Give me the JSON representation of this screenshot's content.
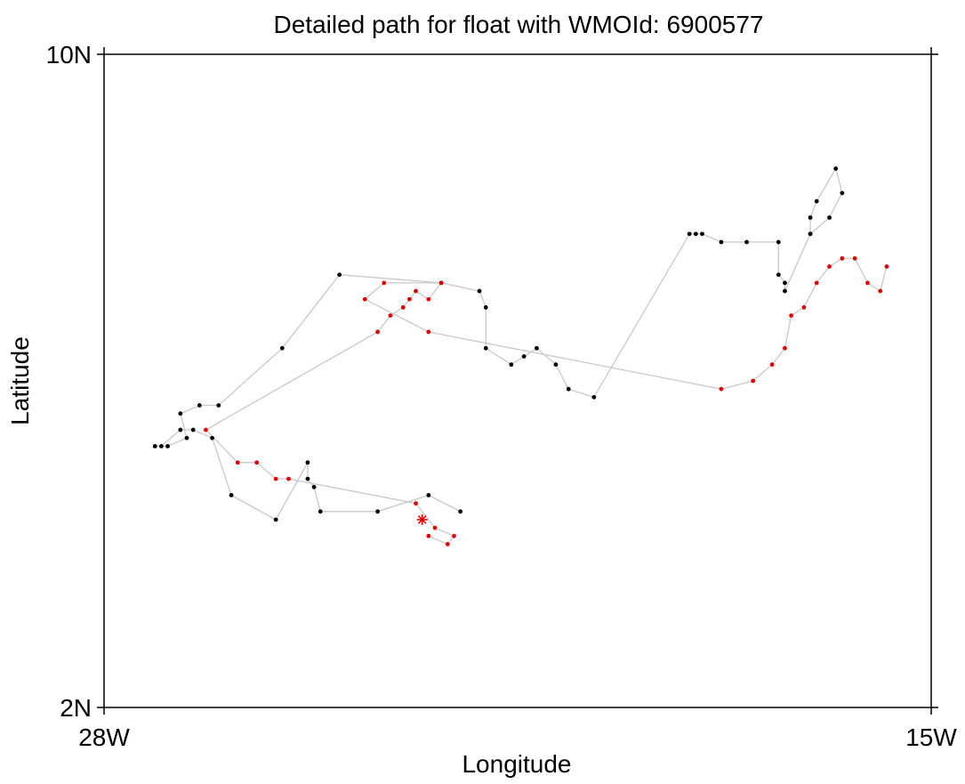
{
  "chart_data": {
    "type": "scatter",
    "title": "Detailed path for float with WMOId: 6900577",
    "xlabel": "Longitude",
    "ylabel": "Latitude",
    "xlim": [
      -28,
      -15
    ],
    "ylim": [
      2,
      10
    ],
    "x_ticks": [
      {
        "value": -28,
        "label": "28W"
      },
      {
        "value": -15,
        "label": "15W"
      }
    ],
    "y_ticks": [
      {
        "value": 2,
        "label": "2N"
      },
      {
        "value": 10,
        "label": "10N"
      }
    ],
    "grid": false,
    "colors": {
      "path_line": "#c8c8c8",
      "black_points": "#000000",
      "red_points": "#e00000",
      "end_marker": "#e00000",
      "axis": "#000000"
    },
    "series": [
      {
        "color": "black",
        "path": [
          [
            -22.4,
            4.4
          ],
          [
            -22.9,
            4.6
          ],
          [
            -23.7,
            4.4
          ],
          [
            -24.6,
            4.4
          ],
          [
            -24.7,
            4.7
          ],
          [
            -24.8,
            4.8
          ],
          [
            -24.8,
            5.0
          ],
          [
            -25.3,
            4.3
          ],
          [
            -26.0,
            4.6
          ],
          [
            -26.3,
            5.3
          ],
          [
            -26.6,
            5.4
          ],
          [
            -26.8,
            5.4
          ],
          [
            -27.1,
            5.2
          ],
          [
            -27.2,
            5.2
          ],
          [
            -27.0,
            5.2
          ],
          [
            -26.7,
            5.3
          ],
          [
            -26.8,
            5.6
          ],
          [
            -26.5,
            5.7
          ],
          [
            -26.2,
            5.7
          ],
          [
            -25.2,
            6.4
          ],
          [
            -24.3,
            7.3
          ],
          [
            -22.7,
            7.2
          ],
          [
            -22.1,
            7.1
          ],
          [
            -22.0,
            6.9
          ],
          [
            -22.0,
            6.4
          ],
          [
            -21.6,
            6.2
          ],
          [
            -21.4,
            6.3
          ],
          [
            -21.2,
            6.4
          ],
          [
            -20.9,
            6.2
          ],
          [
            -20.7,
            5.9
          ],
          [
            -20.3,
            5.8
          ],
          [
            -18.8,
            7.8
          ],
          [
            -18.7,
            7.8
          ],
          [
            -18.6,
            7.8
          ],
          [
            -18.3,
            7.7
          ],
          [
            -17.9,
            7.7
          ],
          [
            -17.4,
            7.7
          ],
          [
            -17.4,
            7.3
          ],
          [
            -17.3,
            7.2
          ],
          [
            -17.3,
            7.1
          ],
          [
            -16.9,
            7.8
          ],
          [
            -16.6,
            8.0
          ],
          [
            -16.4,
            8.3
          ],
          [
            -16.5,
            8.6
          ],
          [
            -16.8,
            8.2
          ],
          [
            -16.9,
            8.0
          ],
          [
            -16.9,
            7.8
          ]
        ]
      },
      {
        "color": "red",
        "path": [
          [
            -22.9,
            4.1
          ],
          [
            -22.6,
            4.0
          ],
          [
            -22.5,
            4.1
          ],
          [
            -22.8,
            4.2
          ],
          [
            -23.1,
            4.5
          ],
          [
            -25.1,
            4.8
          ],
          [
            -25.3,
            4.8
          ],
          [
            -25.6,
            5.0
          ],
          [
            -25.9,
            5.0
          ],
          [
            -26.4,
            5.4
          ],
          [
            -23.7,
            6.6
          ],
          [
            -23.5,
            6.8
          ],
          [
            -23.3,
            6.9
          ],
          [
            -23.2,
            7.0
          ],
          [
            -23.1,
            7.1
          ],
          [
            -22.9,
            7.0
          ],
          [
            -22.7,
            7.2
          ],
          [
            -23.6,
            7.2
          ],
          [
            -23.9,
            7.0
          ],
          [
            -22.9,
            6.6
          ],
          [
            -18.3,
            5.9
          ],
          [
            -17.8,
            6.0
          ],
          [
            -17.5,
            6.2
          ],
          [
            -17.3,
            6.4
          ],
          [
            -17.2,
            6.8
          ],
          [
            -17.0,
            6.9
          ],
          [
            -16.8,
            7.2
          ],
          [
            -16.6,
            7.4
          ],
          [
            -16.4,
            7.5
          ],
          [
            -16.2,
            7.5
          ],
          [
            -16.0,
            7.2
          ],
          [
            -15.8,
            7.1
          ],
          [
            -15.7,
            7.4
          ]
        ]
      }
    ],
    "end_marker": {
      "x": -23.0,
      "y": 4.3,
      "symbol": "asterisk",
      "color": "red"
    }
  }
}
